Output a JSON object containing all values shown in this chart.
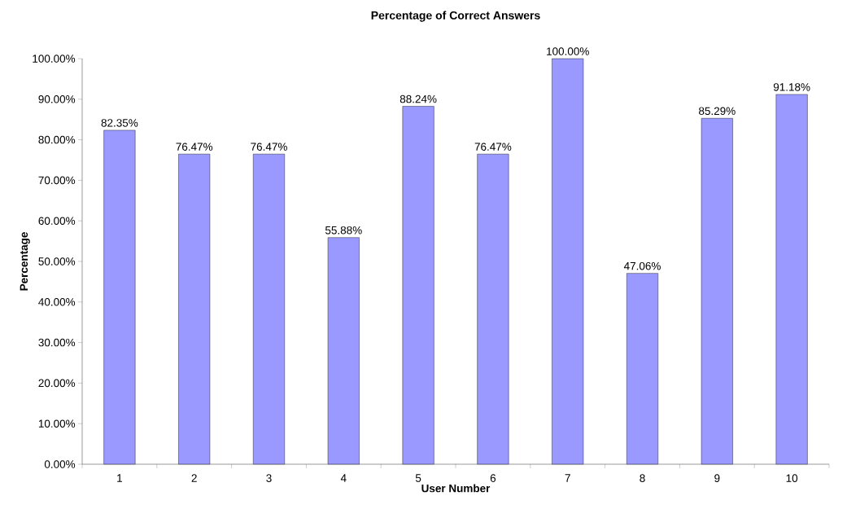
{
  "chart_data": {
    "type": "bar",
    "title": "Percentage of Correct Answers",
    "xlabel": "User Number",
    "ylabel": "Percentage",
    "categories": [
      "1",
      "2",
      "3",
      "4",
      "5",
      "6",
      "7",
      "8",
      "9",
      "10"
    ],
    "values": [
      82.35,
      76.47,
      76.47,
      55.88,
      88.24,
      76.47,
      100,
      47.06,
      85.29,
      91.18
    ],
    "value_labels": [
      "82.35%",
      "76.47%",
      "76.47%",
      "55.88%",
      "88.24%",
      "76.47%",
      "100.00%",
      "47.06%",
      "85.29%",
      "91.18%"
    ],
    "color": "#9999ff",
    "ylim": [
      0,
      100
    ],
    "yticks": [
      {
        "value": 0,
        "label": "0.00%"
      },
      {
        "value": 10,
        "label": "10.00%"
      },
      {
        "value": 20,
        "label": "20.00%"
      },
      {
        "value": 30,
        "label": "30.00%"
      },
      {
        "value": 40,
        "label": "40.00%"
      },
      {
        "value": 50,
        "label": "50.00%"
      },
      {
        "value": 60,
        "label": "60.00%"
      },
      {
        "value": 70,
        "label": "70.00%"
      },
      {
        "value": 80,
        "label": "80.00%"
      },
      {
        "value": 90,
        "label": "90.00%"
      },
      {
        "value": 100,
        "label": "100.00%"
      }
    ]
  }
}
